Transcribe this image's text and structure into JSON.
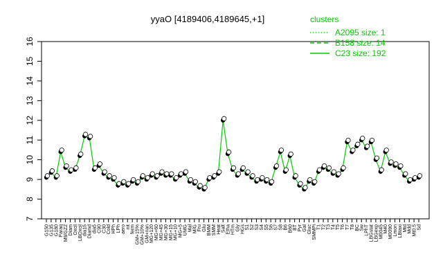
{
  "chart_data": {
    "type": "line",
    "title": "yyaO [4189406,4189645,+1]",
    "xlabel": "",
    "ylabel": "",
    "ylim": [
      7,
      16
    ],
    "yticks": [
      7,
      8,
      9,
      10,
      11,
      12,
      13,
      14,
      15,
      16
    ],
    "grid": false,
    "legend": {
      "title": "clusters",
      "position": "top-right",
      "color": "#00cc00",
      "entries": [
        {
          "label": "A2095 size: 1",
          "style": "dotted"
        },
        {
          "label": "B158 size: 14",
          "style": "dashed"
        },
        {
          "label": "C23 size: 192",
          "style": "solid"
        }
      ]
    },
    "tick_labels": [
      "G150",
      "G135",
      "G180",
      "Paraq",
      "M9/GZ2",
      "Diam",
      "Oxcil",
      "LBOxcil",
      "dia15",
      "Diamd",
      "dia5",
      "C90",
      "C30",
      "Cold",
      "HPh",
      "LPh",
      "aero",
      "nit",
      "ferm",
      "GM+15%",
      "GM+10%",
      "GM+nan",
      "MG+120",
      "MG+60",
      "MG+45",
      "MG+30",
      "MG+15",
      "MG+10",
      "MG+5",
      "UMG",
      "Mal",
      "M/G",
      "Fru",
      "Glu",
      "BMM",
      "SMM",
      "Heat",
      "Salt",
      "Etha",
      "HTm",
      "Gly",
      "HGs",
      "S1",
      "S2",
      "S3",
      "S4",
      "S5",
      "S6",
      "S7",
      "S8",
      "B6",
      "B60",
      "BT",
      "Pyr",
      "Gal",
      "Gluc",
      "SMMPi",
      "T1",
      "T2",
      "T3",
      "T4",
      "T5",
      "T6",
      "T7",
      "T8",
      "BC",
      "Sw",
      "LPhT",
      "LBGstat",
      "LBGexp",
      "M0045",
      "M40",
      "M0090",
      "Lmon",
      "LBtaxi",
      "Mtd",
      "Mdd",
      "Mt0.5",
      "Sd"
    ],
    "series": [
      {
        "values": [
          9.1,
          9.35,
          9.1,
          10.4,
          9.6,
          9.4,
          9.5,
          10.2,
          11.2,
          11.1,
          9.5,
          9.7,
          9.3,
          9.1,
          9.0,
          8.7,
          8.8,
          8.7,
          8.9,
          8.8,
          9.1,
          9.0,
          9.2,
          9.1,
          9.3,
          9.2,
          9.2,
          9.0,
          9.2,
          9.3,
          8.9,
          8.8,
          8.6,
          8.5,
          9.0,
          9.1,
          9.3,
          12.0,
          10.3,
          9.5,
          9.2,
          9.5,
          9.3,
          9.1,
          8.9,
          9.0,
          8.9,
          8.8,
          9.6,
          10.4,
          9.4,
          10.2,
          9.1,
          8.7,
          8.5,
          8.9,
          8.8,
          9.4,
          9.6,
          9.5,
          9.3,
          9.2,
          9.5,
          10.9,
          10.4,
          10.7,
          11.0,
          10.6,
          10.9,
          10.0,
          9.4,
          10.4,
          9.8,
          9.7,
          9.6,
          9.2,
          8.9,
          9.0,
          9.1
        ]
      }
    ]
  }
}
